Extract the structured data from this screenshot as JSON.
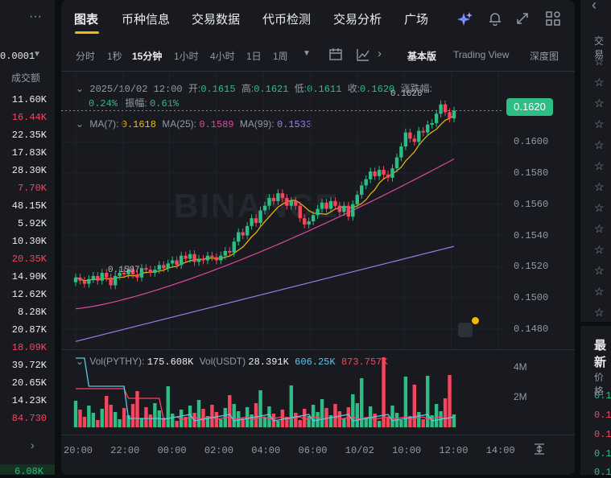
{
  "left": {
    "price": "0.0001",
    "header": "成交额",
    "volumes": [
      "11.60K",
      "16.44K",
      "22.35K",
      "17.83K",
      "28.30K",
      "7.70K",
      "48.15K",
      "5.92K",
      "10.30K",
      "20.35K",
      "14.90K",
      "12.62K",
      "8.28K",
      "20.87K",
      "18.09K",
      "39.72K",
      "20.65K",
      "14.23K",
      "84.730"
    ],
    "bottom": "6.08K"
  },
  "tabs": [
    "图表",
    "币种信息",
    "交易数据",
    "代币检测",
    "交易分析",
    "广场"
  ],
  "timeframes": [
    "分时",
    "1秒",
    "15分钟",
    "1小时",
    "4小时",
    "1日",
    "1周"
  ],
  "views": [
    "基本版",
    "Trading View",
    "深度图"
  ],
  "ohlc": {
    "date": "2025/10/02 12:00",
    "open_label": "开:",
    "open": "0.1615",
    "high_label": "高:",
    "high": "0.1621",
    "low_label": "低:",
    "low": "0.1611",
    "close_label": "收:",
    "close": "0.1620",
    "change_label": "涨跌幅:",
    "change": "0.24%",
    "amp_label": "振幅:",
    "amp": "0.61%"
  },
  "ma": {
    "ma7_label": "MA(7):",
    "ma7": "0.1618",
    "ma25_label": "MA(25):",
    "ma25": "0.1589",
    "ma99_label": "MA(99):",
    "ma99": "0.1533"
  },
  "current_price": "0.1620",
  "high_marker": "0.1628",
  "low_marker": "0.1507",
  "watermark": "BINANCE",
  "vol": {
    "label1": "Vol(PYTHY):",
    "val1": "175.608K",
    "label2": "Vol(USDT)",
    "val2": "28.391K",
    "val3": "606.25K",
    "val4": "873.757K"
  },
  "chart_data": {
    "type": "candlestick",
    "y_ticks": [
      "0.1600",
      "0.1580",
      "0.1560",
      "0.1540",
      "0.1520",
      "0.1500",
      "0.1480"
    ],
    "y_range": [
      0.1467,
      0.1645
    ],
    "vol_ticks": [
      "4M",
      "2M"
    ],
    "x_ticks": [
      "20:00",
      "22:00",
      "00:00",
      "02:00",
      "04:00",
      "06:00",
      "10/02",
      "10:00",
      "12:00",
      "14:00"
    ],
    "closes": [
      0.1513,
      0.1511,
      0.1509,
      0.1512,
      0.1514,
      0.1511,
      0.1516,
      0.1513,
      0.1508,
      0.1514,
      0.1516,
      0.1515,
      0.1518,
      0.1515,
      0.1513,
      0.1519,
      0.1518,
      0.1516,
      0.1518,
      0.1521,
      0.1519,
      0.1522,
      0.1524,
      0.1521,
      0.1527,
      0.1525,
      0.1528,
      0.1523,
      0.1525,
      0.1524,
      0.1527,
      0.1526,
      0.1524,
      0.1527,
      0.153,
      0.1529,
      0.1536,
      0.1542,
      0.154,
      0.1546,
      0.1551,
      0.1548,
      0.1556,
      0.1559,
      0.1564,
      0.1562,
      0.1567,
      0.1564,
      0.1559,
      0.1562,
      0.1559,
      0.1551,
      0.1547,
      0.1549,
      0.1553,
      0.1557,
      0.1561,
      0.1557,
      0.1562,
      0.1559,
      0.1555,
      0.1559,
      0.1552,
      0.156,
      0.1566,
      0.1572,
      0.1576,
      0.1581,
      0.1578,
      0.1582,
      0.1579,
      0.1577,
      0.1583,
      0.159,
      0.1597,
      0.1606,
      0.1602,
      0.16,
      0.1607,
      0.1606,
      0.1611,
      0.1612,
      0.1618,
      0.1624,
      0.1619,
      0.1615,
      0.162
    ],
    "ma7_range": [
      0.151,
      0.1618
    ],
    "ma25_range": [
      0.1493,
      0.1589
    ],
    "ma99_range": [
      0.1472,
      0.1533
    ]
  },
  "colors": {
    "up": "#2ebd85",
    "down": "#f6465d",
    "ma7": "#f0b90b",
    "ma25": "#e0489e",
    "ma99": "#a27ce6",
    "vol_line": "#5ac8e8"
  }
}
